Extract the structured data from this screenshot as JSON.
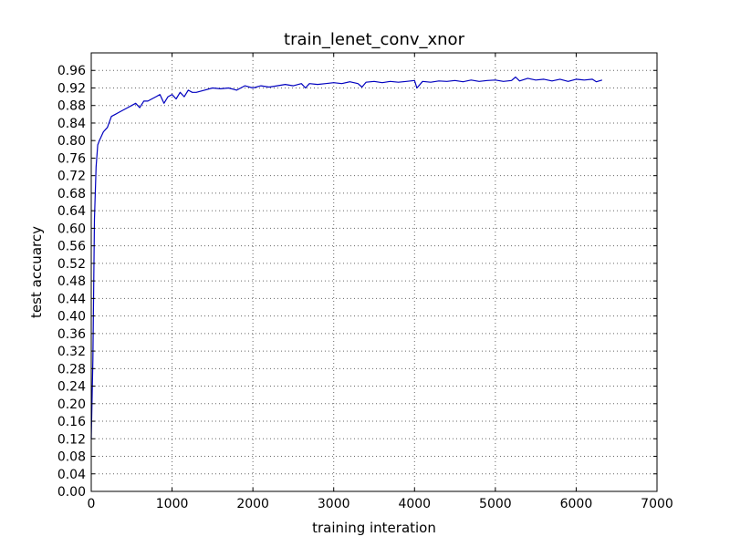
{
  "chart_data": {
    "type": "line",
    "title": "train_lenet_conv_xnor",
    "xlabel": "training interation",
    "ylabel": "test accuarcy",
    "xlim": [
      0,
      7000
    ],
    "ylim": [
      0.0,
      1.0
    ],
    "xticks": [
      0,
      1000,
      2000,
      3000,
      4000,
      5000,
      6000,
      7000
    ],
    "xtick_labels": [
      "0",
      "1000",
      "2000",
      "3000",
      "4000",
      "5000",
      "6000",
      "7000"
    ],
    "yticks": [
      0.0,
      0.04,
      0.08,
      0.12,
      0.16,
      0.2,
      0.24,
      0.28,
      0.32,
      0.36,
      0.4,
      0.44,
      0.48,
      0.52,
      0.56,
      0.6,
      0.64,
      0.68,
      0.72,
      0.76,
      0.8,
      0.84,
      0.88,
      0.92,
      0.96
    ],
    "ytick_labels": [
      "0.00",
      "0.04",
      "0.08",
      "0.12",
      "0.16",
      "0.20",
      "0.24",
      "0.28",
      "0.32",
      "0.36",
      "0.40",
      "0.44",
      "0.48",
      "0.52",
      "0.56",
      "0.60",
      "0.64",
      "0.68",
      "0.72",
      "0.76",
      "0.80",
      "0.84",
      "0.88",
      "0.92",
      "0.96"
    ],
    "grid": true,
    "series": [
      {
        "color": "#0000bf",
        "x": [
          0,
          20,
          40,
          60,
          80,
          100,
          150,
          200,
          250,
          300,
          350,
          400,
          450,
          500,
          550,
          600,
          650,
          700,
          750,
          800,
          850,
          900,
          950,
          1000,
          1050,
          1100,
          1150,
          1200,
          1250,
          1300,
          1400,
          1500,
          1600,
          1700,
          1800,
          1900,
          2000,
          2100,
          2200,
          2300,
          2400,
          2500,
          2600,
          2650,
          2700,
          2800,
          2900,
          3000,
          3100,
          3200,
          3300,
          3350,
          3400,
          3500,
          3600,
          3700,
          3800,
          3900,
          4000,
          4030,
          4100,
          4200,
          4300,
          4400,
          4500,
          4600,
          4700,
          4800,
          4900,
          5000,
          5100,
          5200,
          5250,
          5300,
          5400,
          5500,
          5600,
          5700,
          5800,
          5900,
          6000,
          6100,
          6200,
          6250,
          6320
        ],
        "values": [
          0.12,
          0.3,
          0.62,
          0.74,
          0.79,
          0.8,
          0.82,
          0.83,
          0.855,
          0.86,
          0.865,
          0.87,
          0.875,
          0.88,
          0.885,
          0.875,
          0.89,
          0.89,
          0.895,
          0.9,
          0.905,
          0.885,
          0.9,
          0.905,
          0.895,
          0.91,
          0.9,
          0.915,
          0.91,
          0.91,
          0.915,
          0.92,
          0.918,
          0.92,
          0.915,
          0.925,
          0.92,
          0.925,
          0.922,
          0.925,
          0.928,
          0.925,
          0.93,
          0.92,
          0.93,
          0.928,
          0.93,
          0.932,
          0.93,
          0.934,
          0.93,
          0.922,
          0.933,
          0.935,
          0.932,
          0.935,
          0.933,
          0.935,
          0.937,
          0.92,
          0.935,
          0.933,
          0.936,
          0.935,
          0.937,
          0.934,
          0.938,
          0.935,
          0.937,
          0.938,
          0.935,
          0.937,
          0.945,
          0.936,
          0.942,
          0.938,
          0.94,
          0.936,
          0.94,
          0.935,
          0.94,
          0.938,
          0.94,
          0.934,
          0.938
        ]
      }
    ]
  }
}
